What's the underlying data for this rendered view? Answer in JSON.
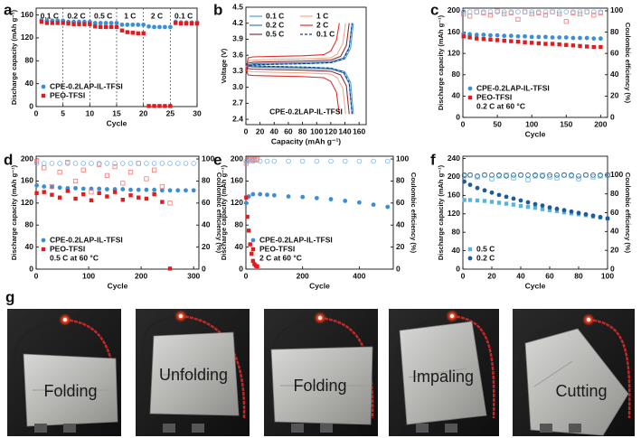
{
  "chart_data": [
    {
      "type": "scatter",
      "panel_label": "a",
      "xlabel": "Cycle",
      "ylabel": "Discharge capacity (mAh g⁻¹)",
      "xlim": [
        0,
        30
      ],
      "xticks": [
        0,
        5,
        10,
        15,
        20,
        25,
        30
      ],
      "ylim": [
        0,
        172
      ],
      "yticks": [
        0,
        40,
        80,
        120,
        160
      ],
      "dividers": [
        5,
        10,
        15,
        20,
        25
      ],
      "rate_labels": [
        "0.1 C",
        "0.2 C",
        "0.5 C",
        "1 C",
        "2 C",
        "0.1 C"
      ],
      "legend": "lower left",
      "x": [
        1,
        2,
        3,
        4,
        5,
        6,
        7,
        8,
        9,
        10,
        11,
        12,
        13,
        14,
        15,
        16,
        17,
        18,
        19,
        20,
        21,
        22,
        23,
        24,
        25,
        26,
        27,
        28,
        29,
        30
      ],
      "series": [
        {
          "name": "CPE-0.2LAP-IL-TFSI",
          "color": "#3b8ed8",
          "marker": "circle",
          "values": [
            151,
            150,
            150,
            150,
            150,
            148,
            148,
            148,
            148,
            148,
            146,
            146,
            146,
            146,
            146,
            143,
            143,
            143,
            143,
            143,
            140,
            139,
            139,
            139,
            139,
            148,
            147,
            147,
            147,
            147
          ]
        },
        {
          "name": "PEO-TFSI",
          "color": "#e41a1c",
          "marker": "square",
          "values": [
            148,
            146,
            146,
            146,
            146,
            145,
            144,
            144,
            144,
            144,
            140,
            139,
            139,
            139,
            139,
            133,
            130,
            129,
            128,
            128,
            1,
            1,
            1,
            1,
            1,
            146,
            145,
            145,
            145,
            145
          ]
        }
      ]
    },
    {
      "type": "line",
      "panel_label": "b",
      "xlabel": "Capacity (mAh g⁻¹)",
      "ylabel": "Voltage (V)",
      "xlim": [
        0,
        170
      ],
      "xticks": [
        0,
        20,
        40,
        60,
        80,
        100,
        120,
        140,
        160
      ],
      "ylim": [
        2.3,
        4.5
      ],
      "yticks": [
        2.4,
        2.7,
        {
          "value": 3,
          "label": "3.0"
        },
        3.3,
        3.6,
        3.9,
        4.2,
        4.5
      ],
      "annotation": "CPE-0.2LAP-IL-TFSI",
      "legend": "upper left",
      "legend_columns": 2,
      "series": [
        {
          "name": "0.1 C",
          "color": "#4d9de0",
          "dash": false,
          "x": [
            0,
            3,
            10,
            40,
            80,
            120,
            140,
            148,
            152,
            null,
            0,
            3,
            10,
            40,
            80,
            120,
            140,
            148,
            152
          ],
          "values": [
            3.25,
            3.4,
            3.42,
            3.43,
            3.44,
            3.46,
            3.53,
            3.73,
            4.2,
            null,
            3.45,
            3.41,
            3.4,
            3.39,
            3.38,
            3.36,
            3.29,
            3.09,
            2.5
          ]
        },
        {
          "name": "0.2 C",
          "color": "#3f7fb0",
          "dash": false,
          "x": [
            0,
            3,
            10,
            40,
            80,
            120,
            138,
            146,
            150,
            null,
            0,
            3,
            10,
            40,
            80,
            120,
            138,
            146,
            150
          ],
          "values": [
            3.25,
            3.42,
            3.44,
            3.45,
            3.46,
            3.48,
            3.55,
            3.75,
            4.2,
            null,
            3.45,
            3.39,
            3.38,
            3.37,
            3.36,
            3.34,
            3.27,
            3.07,
            2.5
          ]
        },
        {
          "name": "0.5 C",
          "color": "#8b2f3a",
          "dash": false,
          "x": [
            0,
            3,
            10,
            40,
            80,
            120,
            134,
            142,
            146,
            null,
            0,
            3,
            10,
            40,
            80,
            120,
            134,
            142,
            146
          ],
          "values": [
            3.25,
            3.45,
            3.47,
            3.48,
            3.49,
            3.51,
            3.58,
            3.78,
            4.2,
            null,
            3.42,
            3.35,
            3.34,
            3.33,
            3.32,
            3.3,
            3.23,
            3.03,
            2.5
          ]
        },
        {
          "name": "1 C",
          "color": "#f0a98a",
          "dash": false,
          "x": [
            0,
            3,
            10,
            40,
            80,
            120,
            129,
            137,
            141,
            null,
            0,
            3,
            10,
            40,
            80,
            120,
            129,
            137,
            141
          ],
          "values": [
            3.25,
            3.49,
            3.51,
            3.52,
            3.53,
            3.55,
            3.62,
            3.82,
            4.2,
            null,
            3.4,
            3.3,
            3.29,
            3.28,
            3.27,
            3.25,
            3.18,
            2.98,
            2.5
          ]
        },
        {
          "name": "2 C",
          "color": "#e0302a",
          "dash": false,
          "x": [
            0,
            3,
            10,
            40,
            80,
            110,
            120,
            128,
            132,
            null,
            0,
            3,
            10,
            40,
            80,
            110,
            120,
            128,
            132
          ],
          "values": [
            3.25,
            3.55,
            3.57,
            3.58,
            3.59,
            3.61,
            3.68,
            3.88,
            4.2,
            null,
            3.38,
            3.23,
            3.22,
            3.21,
            3.2,
            3.18,
            3.11,
            2.91,
            2.5
          ]
        },
        {
          "name": "0.1 C",
          "color": "#1b3f7a",
          "dash": true,
          "x": [
            0,
            3,
            10,
            40,
            80,
            120,
            138,
            146,
            150,
            null,
            0,
            3,
            10,
            40,
            80,
            120,
            138,
            146,
            150
          ],
          "values": [
            3.25,
            3.4,
            3.42,
            3.43,
            3.44,
            3.46,
            3.53,
            3.73,
            4.2,
            null,
            3.45,
            3.41,
            3.4,
            3.39,
            3.38,
            3.36,
            3.29,
            3.09,
            2.5
          ]
        }
      ]
    },
    {
      "type": "scatter",
      "panel_label": "c",
      "xlabel": "Cycle",
      "ylabel": "Discharge capacity (mAh g⁻¹)",
      "y2label": "Coulombic efficiency (%)",
      "xlim": [
        0,
        210
      ],
      "xticks": [
        0,
        50,
        100,
        150,
        200
      ],
      "ylim": [
        0,
        205
      ],
      "yticks": [
        0,
        40,
        80,
        120,
        160,
        200
      ],
      "y2lim": [
        0,
        102.5
      ],
      "y2ticks": [
        0,
        20,
        40,
        60,
        80,
        100
      ],
      "legend": "lower left",
      "legend_note": "0.2 C at 60 °C",
      "x": [
        1,
        10,
        20,
        30,
        40,
        50,
        60,
        70,
        80,
        90,
        100,
        110,
        120,
        130,
        140,
        150,
        160,
        170,
        180,
        190,
        200
      ],
      "series": [
        {
          "name": "CPE-0.2LAP-IL-TFSI",
          "color": "#3b8ed8",
          "marker": "circle",
          "values": [
            157,
            156,
            155,
            155,
            154,
            154,
            153,
            153,
            152,
            152,
            151,
            151,
            151,
            150,
            150,
            150,
            149,
            149,
            149,
            148,
            148
          ]
        },
        {
          "name": "PEO-TFSI",
          "color": "#e41a1c",
          "marker": "square",
          "values": [
            152,
            150,
            148,
            147,
            146,
            145,
            144,
            143,
            142,
            141,
            140,
            139,
            138,
            138,
            137,
            136,
            135,
            134,
            133,
            132,
            132
          ]
        },
        {
          "color": "#ef7b7b",
          "marker": "square-open",
          "axis": "y2",
          "values": [
            97,
            95,
            99,
            98,
            96,
            100,
            97,
            98,
            92,
            99,
            97,
            98,
            96,
            99,
            97,
            90,
            98,
            97,
            99,
            96,
            98
          ]
        },
        {
          "color": "#7fb3e0",
          "marker": "circle-open",
          "axis": "y2",
          "values": [
            99,
            99,
            99,
            99,
            99,
            99,
            99,
            99,
            99,
            99,
            99,
            99,
            99,
            99,
            99,
            99,
            99,
            99,
            99,
            99,
            99
          ]
        }
      ]
    },
    {
      "type": "scatter",
      "panel_label": "d",
      "xlabel": "Cycle",
      "ylabel": "Discharge capacity (mAh g⁻¹)",
      "y2label": "Coulombic efficiency (%)",
      "xlim": [
        0,
        310
      ],
      "xticks": [
        0,
        100,
        200,
        300
      ],
      "ylim": [
        0,
        205
      ],
      "yticks": [
        0,
        40,
        80,
        120,
        160,
        200
      ],
      "y2lim": [
        0,
        102.5
      ],
      "y2ticks": [
        0,
        20,
        40,
        60,
        80,
        100
      ],
      "legend": "lower left",
      "legend_note": "0.5 C at 60 °C",
      "x": [
        1,
        15,
        30,
        45,
        60,
        75,
        90,
        105,
        120,
        135,
        150,
        165,
        180,
        195,
        210,
        225,
        240,
        255,
        270,
        285,
        300
      ],
      "series": [
        {
          "name": "CPE-0.2LAP-IL-TFSI",
          "color": "#3b8ed8",
          "marker": "circle",
          "values": [
            152,
            150,
            149,
            148,
            147,
            147,
            146,
            146,
            146,
            145,
            145,
            145,
            144,
            144,
            144,
            144,
            143,
            143,
            143,
            143,
            143
          ]
        },
        {
          "name": "PEO-TFSI",
          "color": "#e41a1c",
          "marker": "square",
          "values": [
            138,
            140,
            135,
            130,
            142,
            128,
            136,
            125,
            138,
            132,
            140,
            126,
            134,
            130,
            128,
            136,
            122,
            1,
            null,
            null,
            null
          ]
        },
        {
          "color": "#ef7b7b",
          "marker": "square-open",
          "axis": "y2",
          "values": [
            98,
            92,
            75,
            88,
            97,
            80,
            90,
            70,
            95,
            85,
            93,
            78,
            88,
            96,
            82,
            90,
            75,
            60,
            null,
            null,
            null
          ]
        },
        {
          "color": "#7fb3e0",
          "marker": "circle-open",
          "axis": "y2",
          "values": [
            96,
            96,
            96,
            96,
            96,
            96,
            96,
            96,
            96,
            96,
            96,
            96,
            96,
            96,
            96,
            96,
            96,
            96,
            96,
            96,
            96
          ]
        }
      ]
    },
    {
      "type": "scatter",
      "panel_label": "e",
      "xlabel": "Cycle",
      "ylabel": "Discharge capacity (mAh g⁻¹)",
      "y2label": "Coulombic efficiency (%)",
      "xlim": [
        0,
        520
      ],
      "xticks": [
        0,
        200,
        400
      ],
      "ylim": [
        0,
        205
      ],
      "yticks": [
        0,
        40,
        80,
        120,
        160,
        200
      ],
      "y2lim": [
        0,
        102.5
      ],
      "y2ticks": [
        0,
        20,
        40,
        60,
        80,
        100
      ],
      "legend": "lower left",
      "legend_note": "2 C at 60 °C",
      "x": [
        1,
        10,
        25,
        50,
        75,
        100,
        150,
        200,
        250,
        300,
        350,
        400,
        450,
        500
      ],
      "series": [
        {
          "name": "CPE-0.2LAP-IL-TFSI",
          "color": "#3b8ed8",
          "marker": "circle",
          "values": [
            120,
            132,
            136,
            136,
            135,
            134,
            132,
            131,
            129,
            127,
            124,
            121,
            117,
            113
          ]
        },
        {
          "name": "PEO-TFSI",
          "color": "#e41a1c",
          "marker": "square",
          "x": [
            1,
            5,
            10,
            15,
            20,
            25,
            30,
            35,
            40
          ],
          "values": [
            130,
            95,
            70,
            45,
            28,
            15,
            9,
            6,
            5
          ]
        },
        {
          "color": "#ef7b7b",
          "marker": "square-open",
          "axis": "y2",
          "x": [
            1,
            5,
            10,
            15,
            20,
            25,
            30,
            35,
            40
          ],
          "values": [
            96,
            99,
            100,
            100,
            100,
            99,
            100,
            99,
            100
          ]
        },
        {
          "color": "#7fb3e0",
          "marker": "circle-open",
          "axis": "y2",
          "values": [
            98,
            98,
            98,
            98,
            98,
            98,
            98,
            98,
            98,
            98,
            98,
            98,
            98,
            98
          ]
        }
      ]
    },
    {
      "type": "scatter",
      "panel_label": "f",
      "xlabel": "Cycle",
      "ylabel": "Discharge capacity (mAh g⁻¹)",
      "y2label": "Coulombic efficiency (%)",
      "xlim": [
        0,
        100
      ],
      "xticks": [
        0,
        20,
        40,
        60,
        80,
        100
      ],
      "ylim": [
        0,
        245
      ],
      "yticks": [
        0,
        40,
        80,
        120,
        160,
        200,
        240
      ],
      "y2lim": [
        0,
        120
      ],
      "y2ticks": [
        0,
        20,
        40,
        60,
        80,
        100
      ],
      "legend": "lower left",
      "x": [
        1,
        5,
        10,
        15,
        20,
        25,
        30,
        35,
        40,
        45,
        50,
        55,
        60,
        65,
        70,
        75,
        80,
        85,
        90,
        95,
        100
      ],
      "series": [
        {
          "name": "0.5 C",
          "color": "#5ab4d6",
          "marker": "square",
          "values": [
            150,
            150,
            149,
            148,
            146,
            144,
            142,
            140,
            137,
            135,
            133,
            130,
            128,
            126,
            123,
            121,
            119,
            117,
            114,
            112,
            110
          ]
        },
        {
          "name": "0.2 C",
          "color": "#1e5c99",
          "marker": "circle",
          "values": [
            190,
            183,
            176,
            171,
            166,
            161,
            157,
            153,
            149,
            145,
            141,
            138,
            134,
            131,
            128,
            125,
            122,
            119,
            116,
            113,
            110
          ]
        },
        {
          "color": "#5ab4d6",
          "marker": "square-open",
          "axis": "y2",
          "values": [
            99,
            100,
            98,
            100,
            96,
            99,
            100,
            97,
            100,
            95,
            99,
            100,
            98,
            97,
            100,
            99,
            96,
            100,
            98,
            99,
            100
          ]
        },
        {
          "color": "#1e5c99",
          "marker": "circle-open",
          "axis": "y2",
          "values": [
            100,
            100,
            99,
            100,
            100,
            100,
            99,
            100,
            100,
            100,
            100,
            99,
            100,
            100,
            100,
            100,
            99,
            100,
            100,
            100,
            100
          ]
        }
      ]
    }
  ],
  "photos": {
    "label": "g",
    "captions": [
      "Folding",
      "Unfolding",
      "Folding",
      "Impaling",
      "Cutting"
    ]
  }
}
